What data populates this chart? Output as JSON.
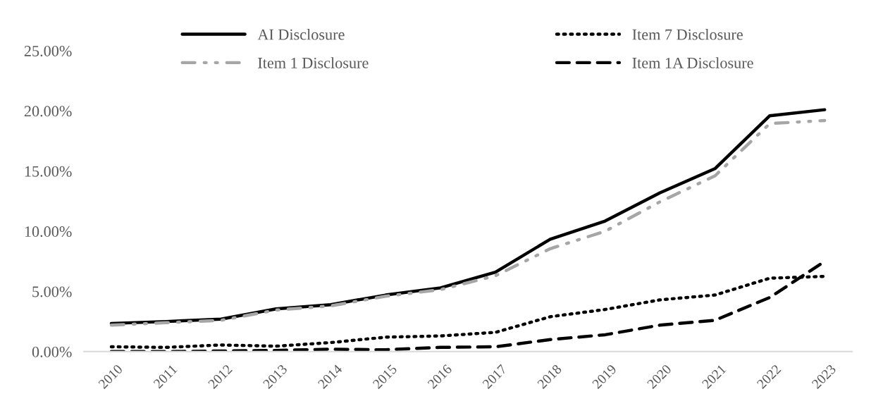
{
  "chart_data": {
    "type": "line",
    "categories": [
      "2010",
      "2011",
      "2012",
      "2013",
      "2014",
      "2015",
      "2016",
      "2017",
      "2018",
      "2019",
      "2020",
      "2021",
      "2022",
      "2023"
    ],
    "series": [
      {
        "name": "AI Disclosure",
        "color": "#000000",
        "line_style": "solid",
        "values": [
          2.34,
          2.5,
          2.7,
          3.55,
          3.9,
          4.7,
          5.3,
          6.6,
          9.34,
          10.85,
          13.2,
          15.2,
          19.6,
          20.1
        ]
      },
      {
        "name": "Item 1 Disclosure",
        "color": "#a6a6a6",
        "line_style": "dashdot",
        "values": [
          2.2,
          2.4,
          2.6,
          3.45,
          3.8,
          4.6,
          5.15,
          6.3,
          8.55,
          10.0,
          12.45,
          14.6,
          18.95,
          19.2
        ]
      },
      {
        "name": "Item 7 Disclosure",
        "color": "#000000",
        "line_style": "dotted",
        "values": [
          0.4,
          0.35,
          0.55,
          0.45,
          0.75,
          1.2,
          1.3,
          1.6,
          2.9,
          3.5,
          4.3,
          4.7,
          6.1,
          6.25
        ]
      },
      {
        "name": "Item 1A Disclosure",
        "color": "#000000",
        "line_style": "dashed",
        "values": [
          0.0,
          0.0,
          0.05,
          0.1,
          0.2,
          0.15,
          0.35,
          0.4,
          1.0,
          1.4,
          2.2,
          2.6,
          4.5,
          7.5
        ]
      }
    ],
    "ylim": [
      0,
      25
    ],
    "yticks": [
      {
        "value": 0,
        "label": "0.00%"
      },
      {
        "value": 5,
        "label": "5.00%"
      },
      {
        "value": 10,
        "label": "10.00%"
      },
      {
        "value": 15,
        "label": "15.00%"
      },
      {
        "value": 20,
        "label": "20.00%"
      },
      {
        "value": 25,
        "label": "25.00%"
      }
    ],
    "grid": false,
    "legend": "top",
    "marker": "none"
  }
}
